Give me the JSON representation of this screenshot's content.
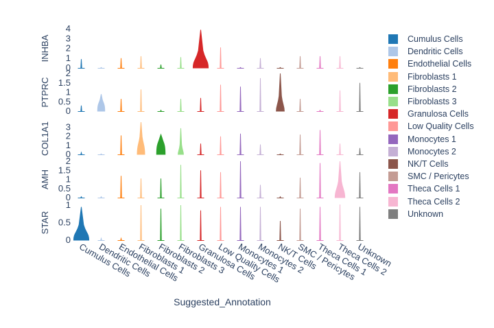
{
  "chart_data": {
    "type": "violin",
    "xlabel": "Suggested_Annotation",
    "categories": [
      "Cumulus Cells",
      "Dendritic Cells",
      "Endothelial Cells",
      "Fibroblasts 1",
      "Fibroblasts 2",
      "Fibroblasts 3",
      "Granulosa Cells",
      "Low Quality Cells",
      "Monocytes 1",
      "Monocytes 2",
      "NK/T Cells",
      "SMC / Pericytes",
      "Theca Cells 1",
      "Theca Cells 2",
      "Unknown"
    ],
    "colors": [
      "#1f77b4",
      "#aec7e8",
      "#ff7f0e",
      "#ffbb78",
      "#2ca02c",
      "#98df8a",
      "#d62728",
      "#ff9896",
      "#9467bd",
      "#c5b0d5",
      "#8c564b",
      "#c49c94",
      "#e377c2",
      "#f7b6d2",
      "#7f7f7f"
    ],
    "legend_position": "right",
    "rows": [
      {
        "gene": "INHBA",
        "ylim": [
          0,
          4
        ],
        "yticks": [
          "4",
          "3",
          "2",
          "1",
          "0"
        ],
        "max": [
          0.9,
          0.05,
          1.0,
          1.2,
          0.35,
          1.1,
          3.9,
          2.1,
          0.05,
          1.0,
          0.05,
          1.2,
          1.2,
          1.2,
          0.05
        ],
        "width": [
          0.02,
          0.02,
          0.02,
          0.02,
          0.05,
          0.02,
          0.85,
          0.02,
          0.02,
          0.02,
          0.02,
          0.02,
          0.02,
          0.05,
          0.02
        ],
        "peak": [
          0.0,
          0.0,
          0.0,
          0.0,
          0.0,
          0.0,
          0.2,
          0.0,
          0.0,
          0.0,
          0.0,
          0.0,
          0.0,
          0.0,
          0.0
        ]
      },
      {
        "gene": "PTPRC",
        "ylim": [
          0,
          2
        ],
        "yticks": [
          "2",
          "1.5",
          "1",
          "0.5",
          "0"
        ],
        "max": [
          0.3,
          0.9,
          0.65,
          1.15,
          0.05,
          0.65,
          0.7,
          1.4,
          1.3,
          1.75,
          2.0,
          0.65,
          0.05,
          1.1,
          1.5
        ],
        "width": [
          0.05,
          0.4,
          0.02,
          0.02,
          0.02,
          0.02,
          0.02,
          0.02,
          0.02,
          0.02,
          0.45,
          0.02,
          0.02,
          0.02,
          0.02
        ],
        "peak": [
          0.1,
          0.2,
          0.0,
          0.0,
          0.0,
          0.0,
          0.0,
          0.0,
          0.0,
          0.0,
          0.15,
          0.0,
          0.0,
          0.0,
          0.0
        ]
      },
      {
        "gene": "COL1A1",
        "ylim": [
          0,
          3.5
        ],
        "yticks": [
          "3",
          "2",
          "1",
          "0"
        ],
        "max": [
          0.2,
          0.05,
          2.1,
          3.6,
          2.2,
          2.9,
          1.2,
          2.0,
          2.3,
          1.1,
          0.05,
          2.2,
          2.7,
          1.2,
          0.7
        ],
        "width": [
          0.05,
          0.02,
          0.02,
          0.42,
          0.48,
          0.3,
          0.02,
          0.02,
          0.02,
          0.02,
          0.02,
          0.02,
          0.02,
          0.02,
          0.02
        ],
        "peak": [
          0.0,
          0.0,
          0.0,
          0.3,
          0.35,
          0.1,
          0.0,
          0.0,
          0.0,
          0.0,
          0.0,
          0.0,
          0.0,
          0.0,
          0.0
        ]
      },
      {
        "gene": "AMH",
        "ylim": [
          0,
          2
        ],
        "yticks": [
          "2",
          "1.5",
          "1",
          "0.5",
          "0"
        ],
        "max": [
          0.05,
          0.05,
          1.2,
          1.05,
          1.05,
          1.8,
          1.5,
          1.4,
          2.0,
          0.7,
          0.05,
          1.1,
          1.9,
          2.0,
          1.4
        ],
        "width": [
          0.02,
          0.02,
          0.02,
          0.02,
          0.02,
          0.02,
          0.02,
          0.02,
          0.05,
          0.02,
          0.02,
          0.02,
          0.05,
          0.55,
          0.02
        ],
        "peak": [
          0.0,
          0.0,
          0.0,
          0.0,
          0.0,
          0.0,
          0.0,
          0.0,
          0.0,
          0.0,
          0.0,
          0.0,
          0.0,
          0.2,
          0.0
        ]
      },
      {
        "gene": "STAR",
        "ylim": [
          0,
          1
        ],
        "yticks": [
          "1",
          "0.5",
          "0"
        ],
        "max": [
          0.95,
          0.05,
          0.05,
          1.0,
          0.9,
          1.0,
          0.85,
          0.95,
          0.95,
          0.95,
          0.55,
          0.9,
          0.95,
          1.05,
          0.95
        ],
        "width": [
          0.85,
          0.02,
          0.02,
          0.02,
          0.02,
          0.02,
          0.02,
          0.02,
          0.02,
          0.02,
          0.02,
          0.02,
          0.02,
          0.02,
          0.02
        ],
        "peak": [
          0.2,
          0.0,
          0.0,
          0.0,
          0.0,
          0.0,
          0.0,
          0.0,
          0.0,
          0.0,
          0.0,
          0.0,
          0.0,
          0.0,
          0.0
        ]
      }
    ]
  }
}
